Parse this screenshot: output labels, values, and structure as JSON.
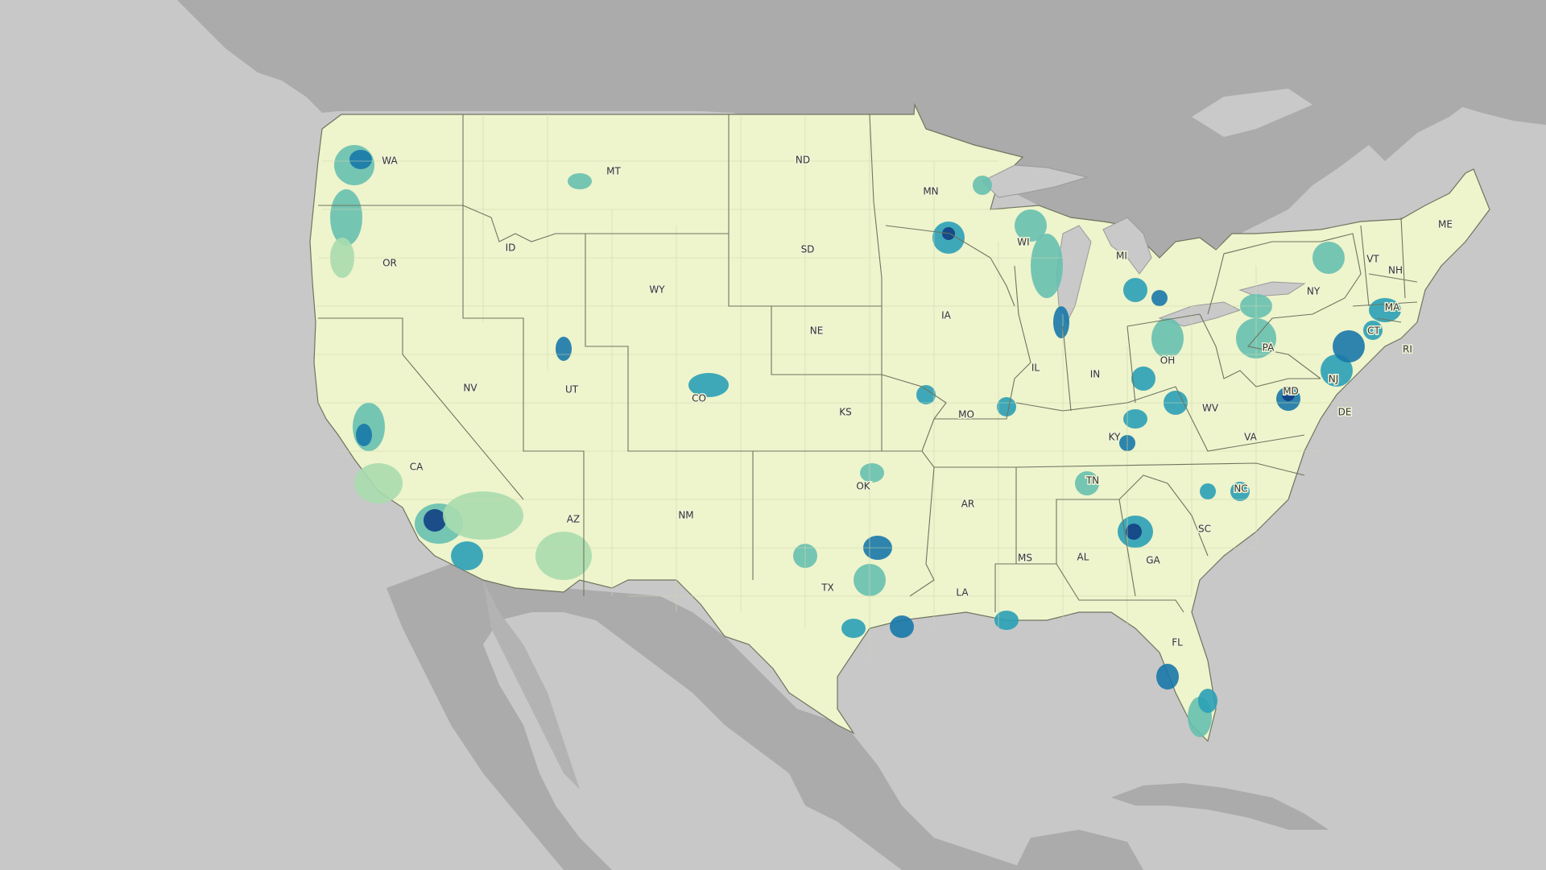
{
  "map": {
    "colors": {
      "background_water": "#c8c8c8",
      "land_other": "#ababab",
      "lakes": "#c9c9c9",
      "choropleth_scale": [
        "#eef4cc",
        "#d8ecb4",
        "#a9dbae",
        "#67c0b0",
        "#2aa0b6",
        "#1878a8",
        "#123f84"
      ],
      "state_border": "#6e7560",
      "county_border": "#c6cfa6"
    },
    "state_labels": [
      "WA",
      "OR",
      "CA",
      "NV",
      "ID",
      "MT",
      "WY",
      "UT",
      "AZ",
      "CO",
      "NM",
      "ND",
      "SD",
      "NE",
      "KS",
      "OK",
      "TX",
      "MN",
      "IA",
      "MO",
      "AR",
      "LA",
      "WI",
      "IL",
      "MI",
      "IN",
      "OH",
      "KY",
      "TN",
      "MS",
      "AL",
      "GA",
      "FL",
      "SC",
      "NC",
      "VA",
      "WV",
      "PA",
      "NY",
      "VT",
      "NH",
      "ME",
      "MA",
      "CT",
      "RI",
      "NJ",
      "DE",
      "MD"
    ]
  }
}
